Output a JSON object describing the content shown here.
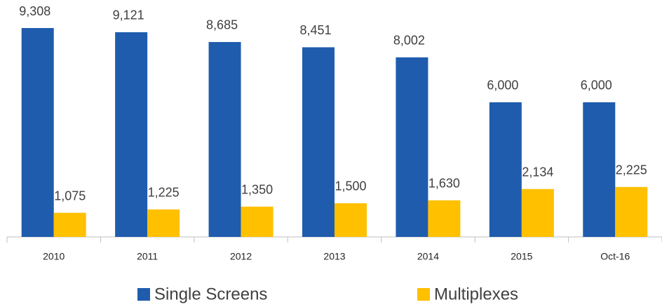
{
  "chart_data": {
    "type": "bar",
    "categories": [
      "2010",
      "2011",
      "2012",
      "2013",
      "2014",
      "2015",
      "Oct-16"
    ],
    "series": [
      {
        "name": "Single Screens",
        "color": "#1f5cad",
        "values": [
          9308,
          9121,
          8685,
          8451,
          8002,
          6000,
          6000
        ],
        "value_labels": [
          "9,308",
          "9,121",
          "8,685",
          "8,451",
          "8,002",
          "6,000",
          "6,000"
        ]
      },
      {
        "name": "Multiplexes",
        "color": "#ffc000",
        "values": [
          1075,
          1225,
          1350,
          1500,
          1630,
          2134,
          2225
        ],
        "value_labels": [
          "1,075",
          "1,225",
          "1,350",
          "1,500",
          "1,630",
          "2,134",
          "2,225"
        ]
      }
    ]
  }
}
